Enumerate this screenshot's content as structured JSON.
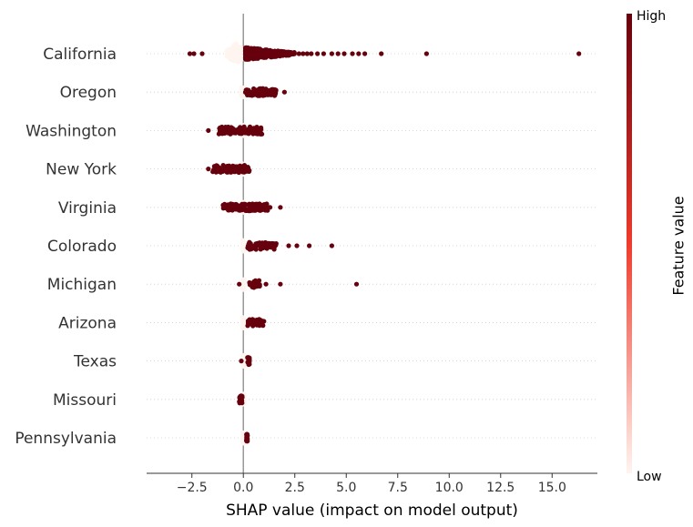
{
  "chart_data": {
    "type": "scatter",
    "subtype": "shap-beeswarm",
    "title": "",
    "xlabel": "SHAP value (impact on model output)",
    "xlim": [
      -4.7,
      17.2
    ],
    "xticks": [
      -2.5,
      0.0,
      2.5,
      5.0,
      7.5,
      10.0,
      12.5,
      15.0
    ],
    "xtick_labels": [
      "−2.5",
      "0.0",
      "2.5",
      "5.0",
      "7.5",
      "10.0",
      "12.5",
      "15.0"
    ],
    "colorbar": {
      "title": "Feature value",
      "high_label": "High",
      "low_label": "Low",
      "high_color": "#67000d",
      "mid_color": "#ef3b2c",
      "low_color": "#fff5f0"
    },
    "features": [
      {
        "name": "California",
        "high": {
          "min": 0.1,
          "max": 2.5,
          "tail": [
            2.7,
            2.9,
            3.1,
            3.3,
            3.6,
            3.9,
            4.3,
            4.6,
            4.9,
            5.3,
            5.6,
            5.9,
            6.7,
            8.9,
            16.3
          ]
        },
        "low": {
          "min": -0.8,
          "max": 0.1,
          "tail": []
        },
        "high_neg": [
          -2.6,
          -2.4,
          -2.0
        ]
      },
      {
        "name": "Oregon",
        "high": {
          "min": 0.1,
          "max": 1.6,
          "tail": [
            2.0
          ]
        },
        "low": {
          "min": -0.1,
          "max": 0.1,
          "tail": []
        },
        "high_neg": []
      },
      {
        "name": "Washington",
        "high": {
          "min": -1.2,
          "max": 0.9,
          "tail": []
        },
        "low": {
          "min": -0.1,
          "max": 0.1,
          "tail": []
        },
        "high_neg": [
          -1.7
        ]
      },
      {
        "name": "New York",
        "high": {
          "min": -1.5,
          "max": 0.3,
          "tail": []
        },
        "low": {
          "min": -0.1,
          "max": 0.05,
          "tail": []
        },
        "high_neg": [
          -1.7
        ]
      },
      {
        "name": "Virginia",
        "high": {
          "min": -1.0,
          "max": 1.2,
          "tail": [
            1.3,
            1.8
          ]
        },
        "low": {
          "min": -0.05,
          "max": 0.05,
          "tail": []
        },
        "high_neg": []
      },
      {
        "name": "Colorado",
        "high": {
          "min": 0.2,
          "max": 1.6,
          "tail": [
            2.2,
            2.6,
            3.2,
            4.3
          ]
        },
        "low": {
          "min": -0.05,
          "max": 0.05,
          "tail": []
        },
        "high_neg": []
      },
      {
        "name": "Michigan",
        "high": {
          "min": 0.3,
          "max": 0.8,
          "tail": [
            1.1,
            1.8,
            5.5
          ]
        },
        "low": {
          "min": -0.05,
          "max": 0.05,
          "tail": []
        },
        "high_neg": [
          -0.2
        ]
      },
      {
        "name": "Arizona",
        "high": {
          "min": 0.2,
          "max": 1.0,
          "tail": []
        },
        "low": {
          "min": -0.05,
          "max": 0.05,
          "tail": []
        },
        "high_neg": []
      },
      {
        "name": "Texas",
        "high": {
          "min": 0.2,
          "max": 0.3,
          "tail": []
        },
        "low": {
          "min": -0.05,
          "max": 0.05,
          "tail": []
        },
        "high_neg": [
          -0.1
        ]
      },
      {
        "name": "Missouri",
        "high": {
          "min": -0.2,
          "max": -0.05,
          "tail": []
        },
        "low": {
          "min": -0.05,
          "max": 0.05,
          "tail": []
        },
        "high_neg": []
      },
      {
        "name": "Pennsylvania",
        "high": {
          "min": 0.15,
          "max": 0.2,
          "tail": []
        },
        "low": {
          "min": -0.05,
          "max": 0.05,
          "tail": []
        },
        "high_neg": []
      }
    ]
  }
}
